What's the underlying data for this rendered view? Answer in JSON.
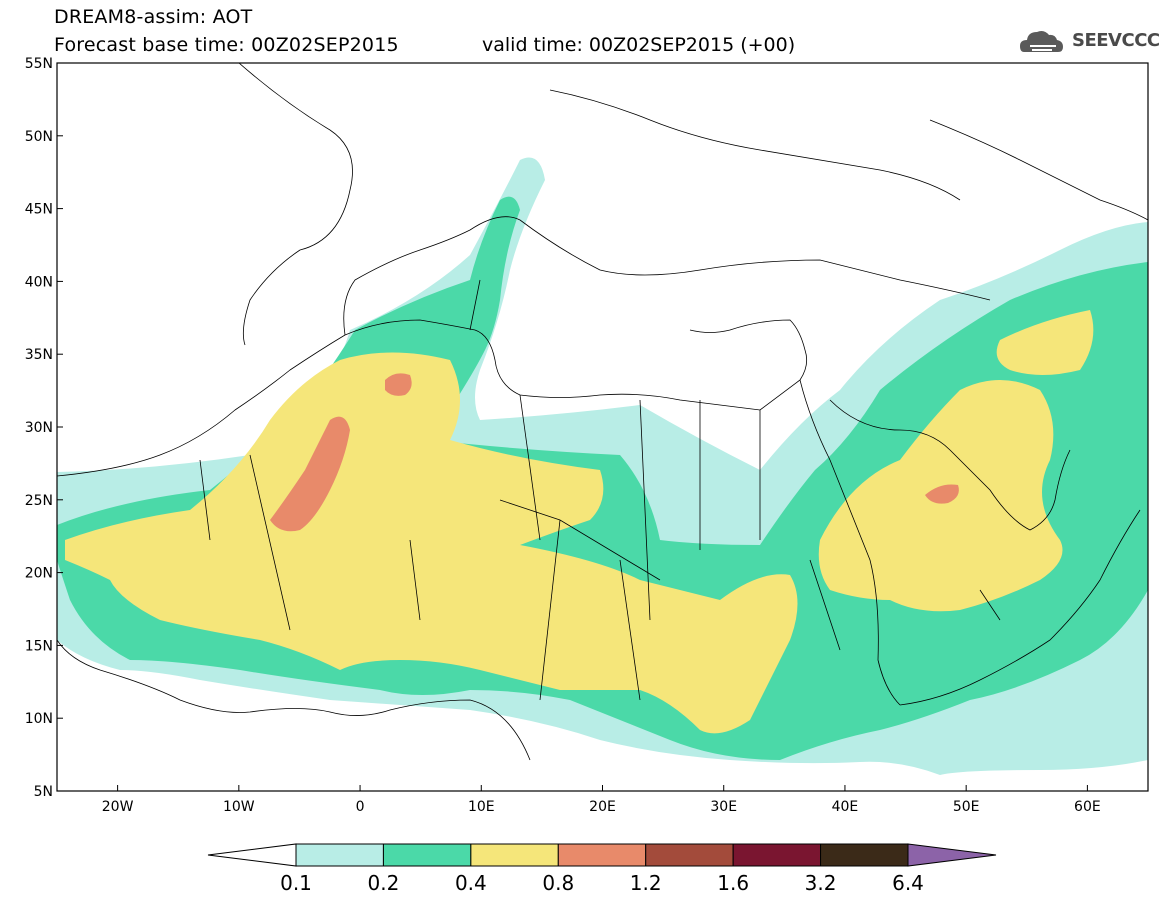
{
  "header": {
    "title": "DREAM8-assim: AOT",
    "base_time": "Forecast base time: 00Z02SEP2015",
    "valid_time": "valid time: 00Z02SEP2015 (+00)"
  },
  "logo": {
    "text": "SEEVCCC",
    "icon": "cloud-icon"
  },
  "map": {
    "lon_range": [
      -25,
      65
    ],
    "lat_range": [
      5,
      55
    ],
    "lat_ticks": [
      "5N",
      "10N",
      "15N",
      "20N",
      "25N",
      "30N",
      "35N",
      "40N",
      "45N",
      "50N",
      "55N"
    ],
    "lon_ticks": [
      "20W",
      "10W",
      "0",
      "10E",
      "20E",
      "30E",
      "40E",
      "50E",
      "60E"
    ]
  },
  "colorbar": {
    "labels": [
      "0.1",
      "0.2",
      "0.4",
      "0.8",
      "1.2",
      "1.6",
      "3.2",
      "6.4"
    ],
    "colors": [
      "#ffffff",
      "#b8ede6",
      "#4bd9a8",
      "#f5e67a",
      "#e88a6a",
      "#a34b3b",
      "#7a1530",
      "#3b2a18",
      "#8c63a8"
    ]
  }
}
